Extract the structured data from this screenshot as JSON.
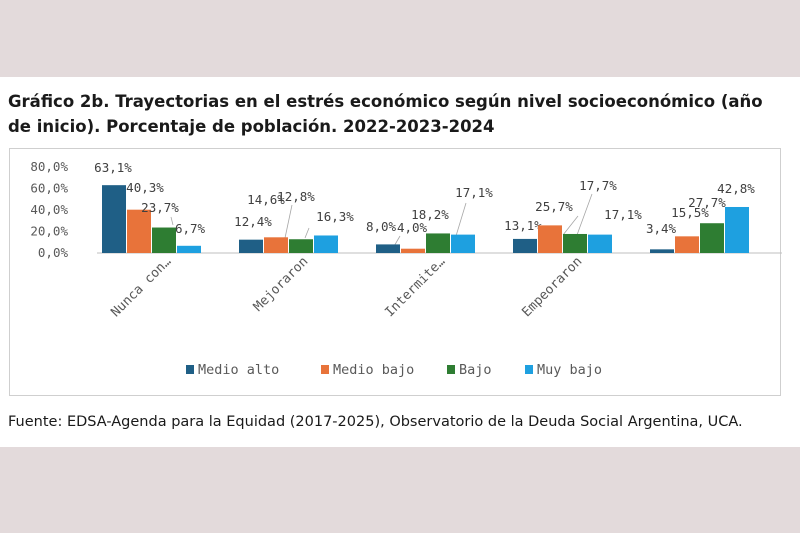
{
  "title": "Gráfico 2b. Trayectorias en el estrés económico según nivel socioeconómico (año de inicio). Porcentaje de población. 2022-2023-2024",
  "source": "Fuente: EDSA-Agenda para la Equidad (2017-2025), Observatorio de la Deuda Social Argentina, UCA.",
  "colors": {
    "background": "#e3dadb",
    "series": [
      "#1f5f86",
      "#e8733a",
      "#2e7d32",
      "#1ea0e0"
    ]
  },
  "chart_data": {
    "type": "bar",
    "categories": [
      "Nunca con…",
      "Mejoraron",
      "Intermite…",
      "Empeoraron",
      ""
    ],
    "series": [
      {
        "name": "Medio alto",
        "values": [
          63.1,
          12.4,
          8.0,
          13.1,
          3.4
        ],
        "labels": [
          "63,1%",
          "12,4%",
          "8,0%",
          "13,1%",
          "3,4%"
        ]
      },
      {
        "name": "Medio bajo",
        "values": [
          40.3,
          14.6,
          4.0,
          25.7,
          15.5
        ],
        "labels": [
          "40,3%",
          "14,6%",
          "4,0%",
          "25,7%",
          "15,5%"
        ]
      },
      {
        "name": "Bajo",
        "values": [
          23.7,
          12.8,
          18.2,
          17.7,
          27.7
        ],
        "labels": [
          "23,7%",
          "12,8%",
          "18,2%",
          "17,7%",
          "27,7%"
        ]
      },
      {
        "name": "Muy bajo",
        "values": [
          6.7,
          16.3,
          17.1,
          17.1,
          42.8
        ],
        "labels": [
          "6,7%",
          "16,3%",
          "17,1%",
          "17,1%",
          "42,8%"
        ]
      }
    ],
    "yticks": [
      "0,0%",
      "20,0%",
      "40,0%",
      "60,0%",
      "80,0%"
    ],
    "ylim": [
      0,
      80
    ],
    "grid": false,
    "legend_position": "bottom"
  }
}
